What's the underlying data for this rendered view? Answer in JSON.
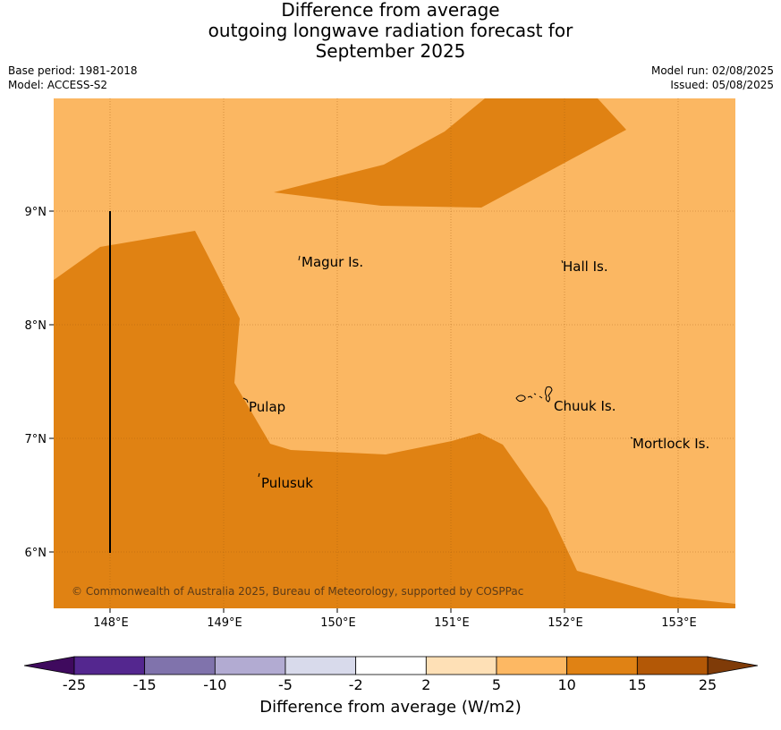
{
  "title": {
    "line1": "Difference from average",
    "line2": "outgoing longwave radiation forecast for",
    "line3": "September 2025"
  },
  "meta": {
    "base_period": "Base period: 1981-2018",
    "model": "Model: ACCESS-S2",
    "model_run": "Model run: 02/08/2025",
    "issued": "Issued: 05/08/2025"
  },
  "map": {
    "lon_ticks": [
      "148°E",
      "149°E",
      "150°E",
      "151°E",
      "152°E",
      "153°E"
    ],
    "lat_ticks": [
      "9°N",
      "8°N",
      "7°N",
      "6°N"
    ],
    "places": [
      {
        "name": "Magur Is."
      },
      {
        "name": "Hall Is."
      },
      {
        "name": "Pulap"
      },
      {
        "name": "Chuuk Is."
      },
      {
        "name": "Mortlock Is."
      },
      {
        "name": "Pulusuk"
      }
    ],
    "copyright": "© Commonwealth of Australia 2025, Bureau of Meteorology, supported by COSPPac",
    "colors": {
      "class_5_10": "#fbb762",
      "class_10_15": "#e08213",
      "grid": "#a05a10"
    }
  },
  "colorbar": {
    "ticks": [
      "-25",
      "-15",
      "-10",
      "-5",
      "-2",
      "2",
      "5",
      "10",
      "15",
      "25"
    ],
    "colors": [
      "#3f0a5e",
      "#54278f",
      "#8073ac",
      "#b2abd2",
      "#d8daeb",
      "#ffffff",
      "#fee0b6",
      "#fdb863",
      "#e08214",
      "#b35806",
      "#7f3b08"
    ],
    "label": "Difference from average (W/m2)"
  }
}
